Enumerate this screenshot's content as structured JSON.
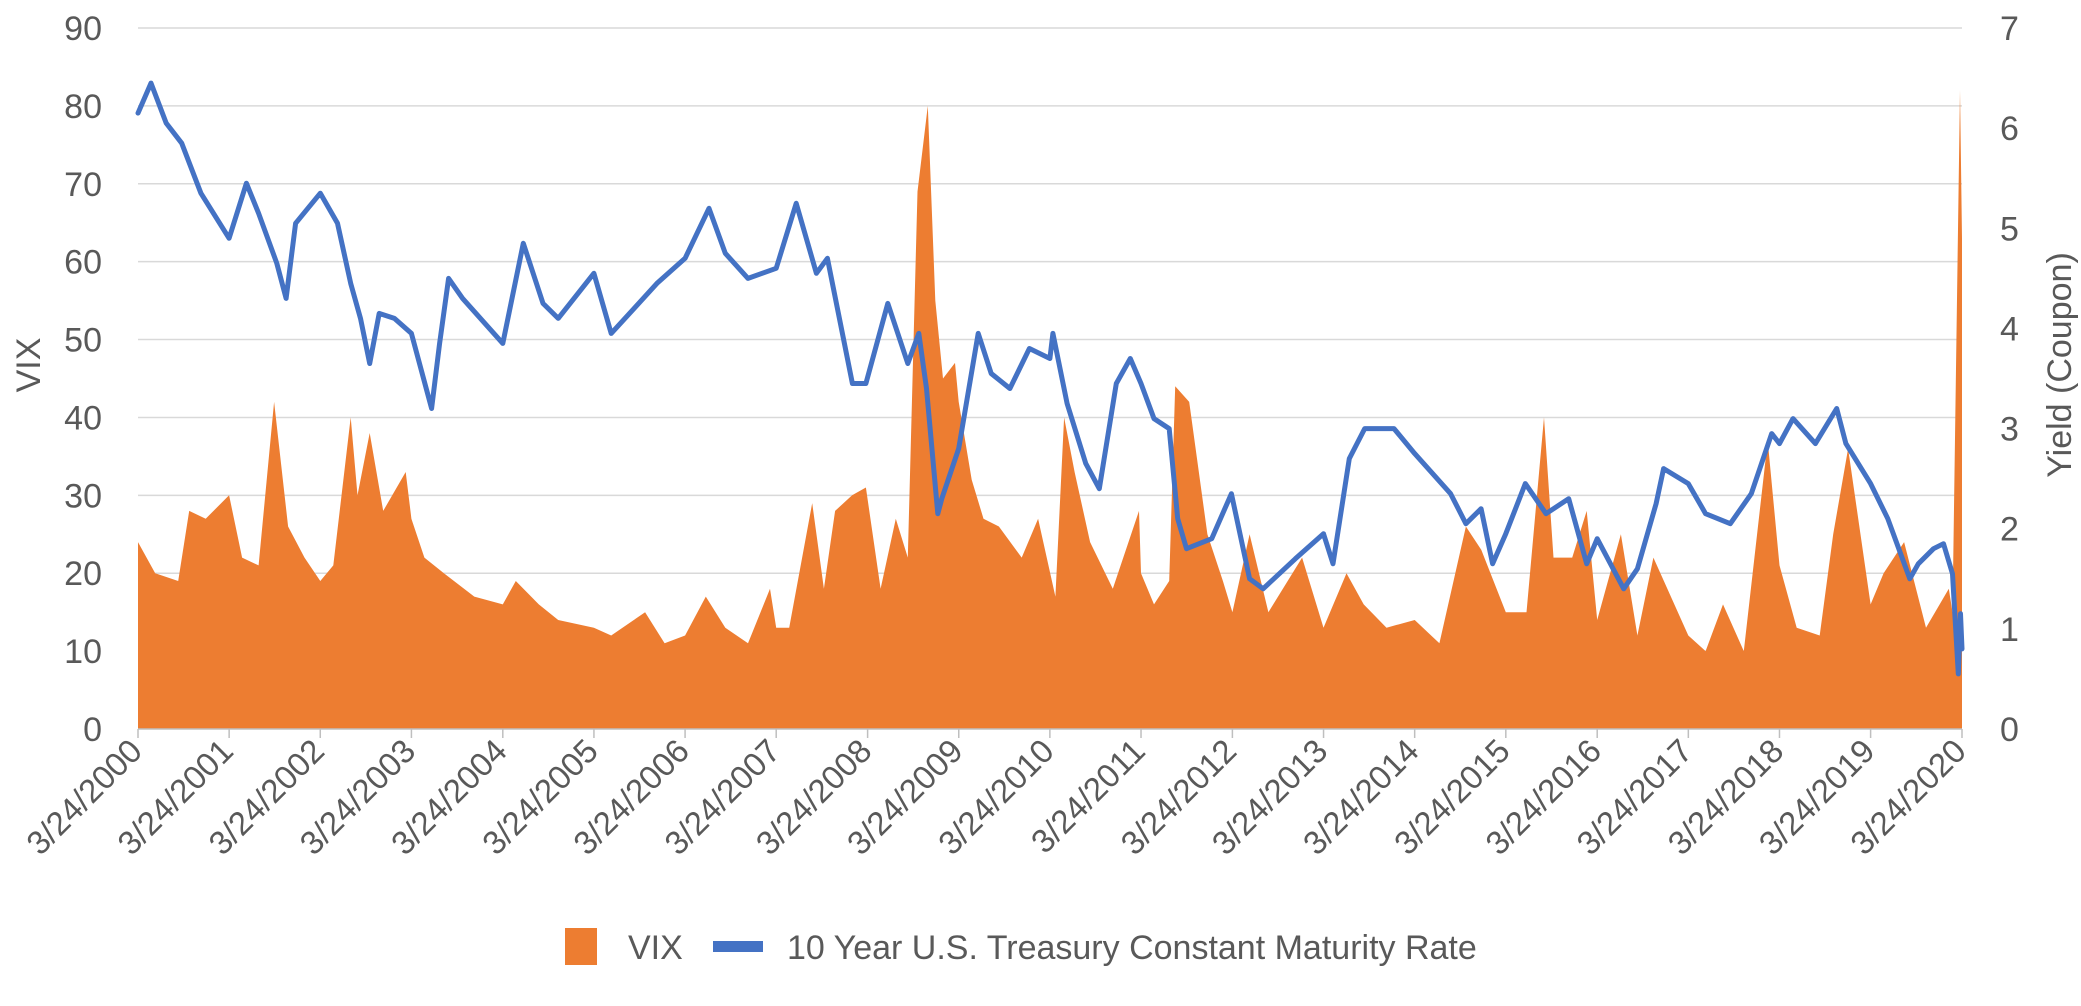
{
  "chart_data": {
    "type": "area+line",
    "title": "",
    "x_type": "date",
    "x_tick_labels": [
      "3/24/2000",
      "3/24/2001",
      "3/24/2002",
      "3/24/2003",
      "3/24/2004",
      "3/24/2005",
      "3/24/2006",
      "3/24/2007",
      "3/24/2008",
      "3/24/2009",
      "3/24/2010",
      "3/24/2011",
      "3/24/2012",
      "3/24/2013",
      "3/24/2014",
      "3/24/2015",
      "3/24/2016",
      "3/24/2017",
      "3/24/2018",
      "3/24/2019",
      "3/24/2020"
    ],
    "y_left": {
      "label": "VIX",
      "min": 0,
      "max": 90,
      "ticks": [
        "0",
        "10",
        "20",
        "30",
        "40",
        "50",
        "60",
        "70",
        "80",
        "90"
      ]
    },
    "y_right": {
      "label": "Yield (Coupon)",
      "min": 0,
      "max": 7,
      "ticks": [
        "0",
        "1",
        "2",
        "3",
        "4",
        "5",
        "6",
        "7"
      ]
    },
    "grid": true,
    "legend_position": "bottom",
    "series": [
      {
        "name": "VIX",
        "kind": "area",
        "axis": "left",
        "color": "#ED7D31",
        "points": [
          [
            "3/24/2000",
            24
          ],
          [
            "6/1/2000",
            20
          ],
          [
            "9/1/2000",
            19
          ],
          [
            "10/15/2000",
            28
          ],
          [
            "12/20/2000",
            27
          ],
          [
            "3/24/2001",
            30
          ],
          [
            "5/15/2001",
            22
          ],
          [
            "7/20/2001",
            21
          ],
          [
            "9/20/2001",
            42
          ],
          [
            "11/15/2001",
            26
          ],
          [
            "1/20/2002",
            22
          ],
          [
            "3/24/2002",
            19
          ],
          [
            "5/15/2002",
            21
          ],
          [
            "7/24/2002",
            40
          ],
          [
            "8/20/2002",
            30
          ],
          [
            "10/8/2002",
            38
          ],
          [
            "12/1/2002",
            28
          ],
          [
            "3/1/2003",
            33
          ],
          [
            "3/24/2003",
            27
          ],
          [
            "5/15/2003",
            22
          ],
          [
            "8/1/2003",
            20
          ],
          [
            "12/1/2003",
            17
          ],
          [
            "3/24/2004",
            16
          ],
          [
            "5/15/2004",
            19
          ],
          [
            "8/15/2004",
            16
          ],
          [
            "11/1/2004",
            14
          ],
          [
            "3/24/2005",
            13
          ],
          [
            "6/1/2005",
            12
          ],
          [
            "10/15/2005",
            15
          ],
          [
            "1/1/2006",
            11
          ],
          [
            "3/24/2006",
            12
          ],
          [
            "6/15/2006",
            17
          ],
          [
            "9/1/2006",
            13
          ],
          [
            "12/1/2006",
            11
          ],
          [
            "2/27/2007",
            18
          ],
          [
            "3/24/2007",
            13
          ],
          [
            "5/15/2007",
            13
          ],
          [
            "8/15/2007",
            29
          ],
          [
            "10/1/2007",
            18
          ],
          [
            "11/15/2007",
            28
          ],
          [
            "1/22/2008",
            30
          ],
          [
            "3/17/2008",
            31
          ],
          [
            "5/15/2008",
            18
          ],
          [
            "7/15/2008",
            27
          ],
          [
            "9/1/2008",
            22
          ],
          [
            "10/10/2008",
            69
          ],
          [
            "11/20/2008",
            80
          ],
          [
            "12/20/2008",
            55
          ],
          [
            "1/20/2009",
            45
          ],
          [
            "3/9/2009",
            47
          ],
          [
            "3/24/2009",
            42
          ],
          [
            "5/15/2009",
            32
          ],
          [
            "7/1/2009",
            27
          ],
          [
            "9/1/2009",
            26
          ],
          [
            "12/1/2009",
            22
          ],
          [
            "2/5/2010",
            27
          ],
          [
            "4/15/2010",
            17
          ],
          [
            "5/20/2010",
            40
          ],
          [
            "7/1/2010",
            33
          ],
          [
            "9/1/2010",
            24
          ],
          [
            "12/1/2010",
            18
          ],
          [
            "3/16/2011",
            28
          ],
          [
            "3/24/2011",
            20
          ],
          [
            "5/15/2011",
            16
          ],
          [
            "7/15/2011",
            19
          ],
          [
            "8/8/2011",
            44
          ],
          [
            "10/3/2011",
            42
          ],
          [
            "12/15/2011",
            25
          ],
          [
            "2/15/2012",
            19
          ],
          [
            "3/24/2012",
            15
          ],
          [
            "6/1/2012",
            25
          ],
          [
            "8/15/2012",
            15
          ],
          [
            "12/28/2012",
            22
          ],
          [
            "3/24/2013",
            13
          ],
          [
            "6/24/2013",
            20
          ],
          [
            "9/1/2013",
            16
          ],
          [
            "12/1/2013",
            13
          ],
          [
            "3/24/2014",
            14
          ],
          [
            "7/1/2014",
            11
          ],
          [
            "10/15/2014",
            26
          ],
          [
            "12/16/2014",
            23
          ],
          [
            "3/24/2015",
            15
          ],
          [
            "6/15/2015",
            15
          ],
          [
            "8/24/2015",
            40
          ],
          [
            "10/1/2015",
            22
          ],
          [
            "12/15/2015",
            22
          ],
          [
            "2/11/2016",
            28
          ],
          [
            "3/24/2016",
            14
          ],
          [
            "6/27/2016",
            25
          ],
          [
            "9/1/2016",
            12
          ],
          [
            "11/4/2016",
            22
          ],
          [
            "3/24/2017",
            12
          ],
          [
            "6/1/2017",
            10
          ],
          [
            "8/10/2017",
            16
          ],
          [
            "11/1/2017",
            10
          ],
          [
            "2/5/2018",
            37
          ],
          [
            "3/24/2018",
            21
          ],
          [
            "6/1/2018",
            13
          ],
          [
            "9/1/2018",
            12
          ],
          [
            "10/25/2018",
            25
          ],
          [
            "12/24/2018",
            36
          ],
          [
            "3/24/2019",
            16
          ],
          [
            "5/15/2019",
            20
          ],
          [
            "8/5/2019",
            24
          ],
          [
            "11/1/2019",
            13
          ],
          [
            "1/31/2020",
            18
          ],
          [
            "2/15/2020",
            15
          ],
          [
            "3/16/2020",
            82
          ],
          [
            "3/24/2020",
            63
          ]
        ]
      },
      {
        "name": "10 Year U.S. Treasury Constant Maturity Rate",
        "kind": "line",
        "axis": "right",
        "color": "#4472C4",
        "points": [
          [
            "3/24/2000",
            6.15
          ],
          [
            "5/15/2000",
            6.45
          ],
          [
            "7/15/2000",
            6.05
          ],
          [
            "9/15/2000",
            5.85
          ],
          [
            "12/1/2000",
            5.35
          ],
          [
            "3/24/2001",
            4.9
          ],
          [
            "6/1/2001",
            5.45
          ],
          [
            "7/20/2001",
            5.15
          ],
          [
            "10/1/2001",
            4.65
          ],
          [
            "11/7/2001",
            4.3
          ],
          [
            "12/15/2001",
            5.05
          ],
          [
            "3/24/2002",
            5.35
          ],
          [
            "6/1/2002",
            5.05
          ],
          [
            "7/24/2002",
            4.45
          ],
          [
            "9/1/2002",
            4.1
          ],
          [
            "10/8/2002",
            3.65
          ],
          [
            "11/15/2002",
            4.15
          ],
          [
            "1/15/2003",
            4.1
          ],
          [
            "3/24/2003",
            3.95
          ],
          [
            "6/13/2003",
            3.2
          ],
          [
            "7/15/2003",
            3.85
          ],
          [
            "8/20/2003",
            4.5
          ],
          [
            "10/15/2003",
            4.3
          ],
          [
            "3/24/2004",
            3.85
          ],
          [
            "6/14/2004",
            4.85
          ],
          [
            "9/1/2004",
            4.25
          ],
          [
            "11/1/2004",
            4.1
          ],
          [
            "3/24/2005",
            4.55
          ],
          [
            "6/1/2005",
            3.95
          ],
          [
            "9/1/2005",
            4.2
          ],
          [
            "12/1/2005",
            4.45
          ],
          [
            "3/24/2006",
            4.7
          ],
          [
            "6/28/2006",
            5.2
          ],
          [
            "9/1/2006",
            4.75
          ],
          [
            "12/1/2006",
            4.5
          ],
          [
            "3/24/2007",
            4.6
          ],
          [
            "6/12/2007",
            5.25
          ],
          [
            "9/1/2007",
            4.55
          ],
          [
            "10/15/2007",
            4.7
          ],
          [
            "1/23/2008",
            3.45
          ],
          [
            "3/17/2008",
            3.45
          ],
          [
            "6/13/2008",
            4.25
          ],
          [
            "9/1/2008",
            3.65
          ],
          [
            "10/15/2008",
            3.95
          ],
          [
            "11/15/2008",
            3.4
          ],
          [
            "12/30/2008",
            2.15
          ],
          [
            "1/15/2009",
            2.3
          ],
          [
            "3/24/2009",
            2.8
          ],
          [
            "6/10/2009",
            3.95
          ],
          [
            "8/1/2009",
            3.55
          ],
          [
            "10/15/2009",
            3.4
          ],
          [
            "1/1/2010",
            3.8
          ],
          [
            "3/24/2010",
            3.7
          ],
          [
            "4/5/2010",
            3.95
          ],
          [
            "6/1/2010",
            3.25
          ],
          [
            "8/15/2010",
            2.65
          ],
          [
            "10/8/2010",
            2.4
          ],
          [
            "12/15/2010",
            3.45
          ],
          [
            "2/9/2011",
            3.7
          ],
          [
            "3/24/2011",
            3.45
          ],
          [
            "5/15/2011",
            3.1
          ],
          [
            "7/15/2011",
            3.0
          ],
          [
            "8/18/2011",
            2.1
          ],
          [
            "9/22/2011",
            1.8
          ],
          [
            "1/1/2012",
            1.9
          ],
          [
            "3/20/2012",
            2.35
          ],
          [
            "6/1/2012",
            1.5
          ],
          [
            "7/25/2012",
            1.4
          ],
          [
            "12/1/2012",
            1.7
          ],
          [
            "3/24/2013",
            1.95
          ],
          [
            "5/1/2013",
            1.65
          ],
          [
            "7/5/2013",
            2.7
          ],
          [
            "9/5/2013",
            3.0
          ],
          [
            "12/31/2013",
            3.0
          ],
          [
            "3/24/2014",
            2.75
          ],
          [
            "8/15/2014",
            2.35
          ],
          [
            "10/15/2014",
            2.05
          ],
          [
            "12/15/2014",
            2.2
          ],
          [
            "1/30/2015",
            1.65
          ],
          [
            "3/24/2015",
            1.95
          ],
          [
            "6/10/2015",
            2.45
          ],
          [
            "9/1/2015",
            2.15
          ],
          [
            "12/1/2015",
            2.3
          ],
          [
            "2/11/2016",
            1.65
          ],
          [
            "3/24/2016",
            1.9
          ],
          [
            "7/8/2016",
            1.4
          ],
          [
            "9/1/2016",
            1.6
          ],
          [
            "11/15/2016",
            2.25
          ],
          [
            "12/15/2016",
            2.6
          ],
          [
            "3/24/2017",
            2.45
          ],
          [
            "6/1/2017",
            2.15
          ],
          [
            "9/8/2017",
            2.05
          ],
          [
            "12/1/2017",
            2.35
          ],
          [
            "2/21/2018",
            2.95
          ],
          [
            "3/24/2018",
            2.85
          ],
          [
            "5/17/2018",
            3.1
          ],
          [
            "8/15/2018",
            2.85
          ],
          [
            "11/8/2018",
            3.2
          ],
          [
            "12/15/2018",
            2.85
          ],
          [
            "3/24/2019",
            2.45
          ],
          [
            "6/1/2019",
            2.1
          ],
          [
            "8/28/2019",
            1.5
          ],
          [
            "10/1/2019",
            1.65
          ],
          [
            "12/1/2019",
            1.8
          ],
          [
            "1/10/2020",
            1.85
          ],
          [
            "2/15/2020",
            1.55
          ],
          [
            "3/9/2020",
            0.55
          ],
          [
            "3/18/2020",
            1.15
          ],
          [
            "3/24/2020",
            0.8
          ]
        ]
      }
    ]
  }
}
